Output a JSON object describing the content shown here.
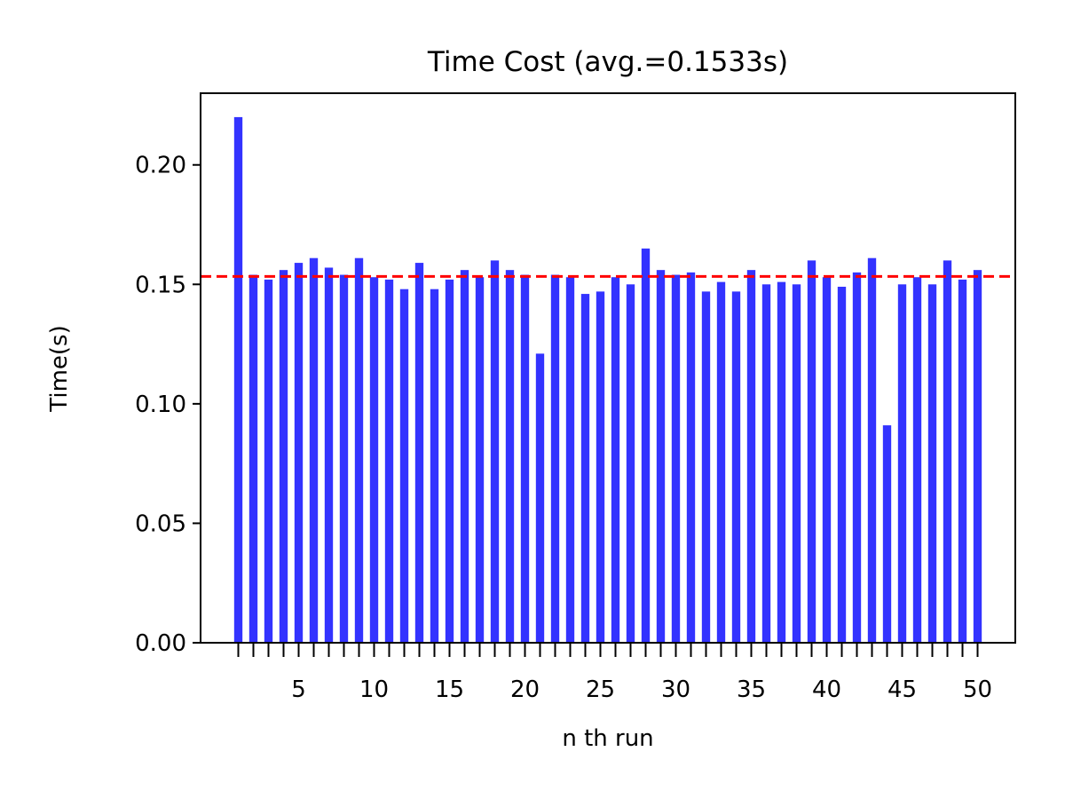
{
  "chart_data": {
    "type": "bar",
    "title": "Time Cost (avg.=0.1533s)",
    "xlabel": "n th run",
    "ylabel": "Time(s)",
    "x": [
      1,
      2,
      3,
      4,
      5,
      6,
      7,
      8,
      9,
      10,
      11,
      12,
      13,
      14,
      15,
      16,
      17,
      18,
      19,
      20,
      21,
      22,
      23,
      24,
      25,
      26,
      27,
      28,
      29,
      30,
      31,
      32,
      33,
      34,
      35,
      36,
      37,
      38,
      39,
      40,
      41,
      42,
      43,
      44,
      45,
      46,
      47,
      48,
      49,
      50
    ],
    "values": [
      0.22,
      0.154,
      0.152,
      0.156,
      0.159,
      0.161,
      0.157,
      0.154,
      0.161,
      0.153,
      0.152,
      0.148,
      0.159,
      0.148,
      0.152,
      0.156,
      0.153,
      0.16,
      0.156,
      0.154,
      0.121,
      0.154,
      0.153,
      0.146,
      0.147,
      0.153,
      0.15,
      0.165,
      0.156,
      0.154,
      0.155,
      0.147,
      0.151,
      0.147,
      0.156,
      0.15,
      0.151,
      0.15,
      0.16,
      0.153,
      0.149,
      0.155,
      0.161,
      0.091,
      0.15,
      0.153,
      0.15,
      0.16,
      0.152,
      0.156
    ],
    "average": 0.1533,
    "xticks": [
      5,
      10,
      15,
      20,
      25,
      30,
      35,
      40,
      45,
      50
    ],
    "yticks": [
      "0.00",
      "0.05",
      "0.10",
      "0.15",
      "0.20"
    ],
    "ylim": [
      0,
      0.23
    ],
    "xlim": [
      -1.5,
      52.5
    ],
    "grid": false,
    "colors": {
      "bar": "#3333ff",
      "avg_line": "#ff0000",
      "axes": "#000000"
    }
  }
}
